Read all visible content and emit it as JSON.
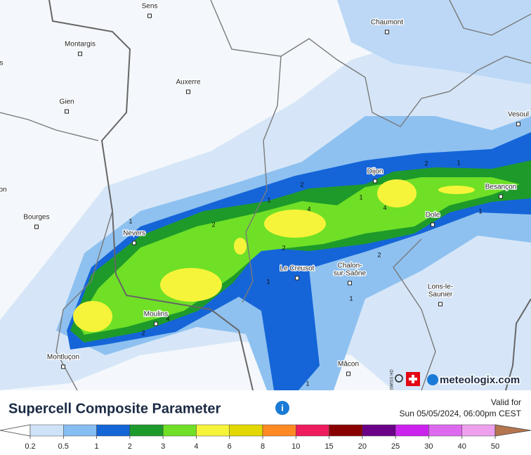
{
  "map": {
    "cities": [
      {
        "lines": [
          "Sens"
        ]
      },
      {
        "lines": [
          "Chaumont"
        ]
      },
      {
        "lines": [
          "Montargis"
        ]
      },
      {
        "lines": [
          "Auxerre"
        ]
      },
      {
        "lines": [
          "Gien"
        ]
      },
      {
        "lines": [
          "Vesoul"
        ]
      },
      {
        "lines": [
          "Dijon"
        ]
      },
      {
        "lines": [
          "Besançon"
        ]
      },
      {
        "lines": [
          "Bourges"
        ]
      },
      {
        "lines": [
          "Nevers"
        ]
      },
      {
        "lines": [
          "Dole"
        ]
      },
      {
        "lines": [
          "Le Creusot"
        ]
      },
      {
        "lines": [
          "Chalon-",
          "sur-Saône"
        ]
      },
      {
        "lines": [
          "Lons-le-",
          "Saunier"
        ]
      },
      {
        "lines": [
          "Moulins"
        ]
      },
      {
        "lines": [
          "Montluçon"
        ]
      },
      {
        "lines": [
          "Mâcon"
        ]
      },
      {
        "lines": [
          "s"
        ]
      },
      {
        "lines": [
          "on"
        ]
      }
    ],
    "contour_labels": [
      1,
      2,
      1,
      2,
      4,
      1,
      4,
      2,
      1,
      1,
      2,
      1,
      1,
      2,
      4,
      2,
      1
    ],
    "badge": "SWISS HD",
    "brand": "meteologix.com"
  },
  "title": "Supercell Composite Parameter",
  "valid_label": "Valid for",
  "valid_time": "Sun 05/05/2024, 06:00pm CEST",
  "legend": {
    "ticks": [
      0.2,
      0.5,
      1,
      2,
      3,
      4,
      6,
      8,
      10,
      15,
      20,
      25,
      30,
      40,
      50
    ],
    "colors": [
      "#cfe3f8",
      "#86bdf2",
      "#1466d6",
      "#1d9a2c",
      "#6fe026",
      "#f6f43a",
      "#e2d800",
      "#ff8a24",
      "#ee1c5c",
      "#8a0000",
      "#6a0088",
      "#cc22ee",
      "#dd6aee",
      "#eea0ee"
    ],
    "under_color": "#ffffff",
    "over_color": "#b5754e"
  }
}
